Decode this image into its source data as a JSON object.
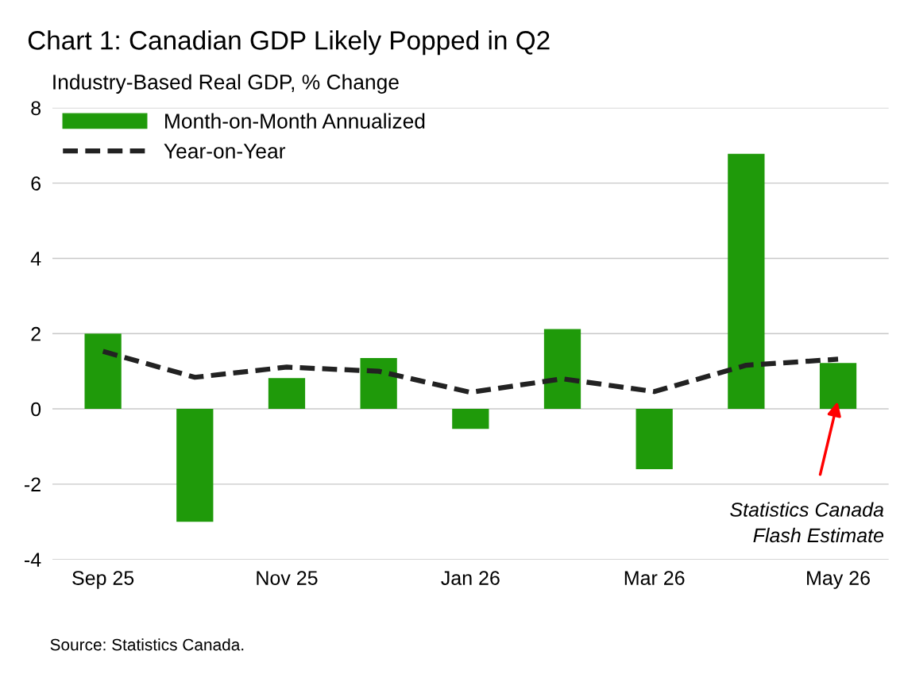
{
  "chart_data": {
    "type": "bar",
    "title": "Chart 1: Canadian GDP Likely Popped in Q2",
    "ylabel": "Industry-Based Real GDP, % Change",
    "categories": [
      "Sep 25",
      null,
      "Nov 25",
      null,
      "Jan 26",
      null,
      "Mar 26",
      null,
      "May 26"
    ],
    "series": [
      {
        "name": "Month-on-Month Annualized",
        "color": "#1f9a0a",
        "values": [
          2.0,
          -3.0,
          0.82,
          1.35,
          -0.53,
          2.12,
          -1.6,
          6.78,
          1.22
        ]
      },
      {
        "name": "Year-on-Year",
        "type": "line",
        "color": "#222222",
        "line_style": "dashed",
        "values": [
          1.53,
          0.84,
          1.11,
          1.0,
          0.44,
          0.8,
          0.46,
          1.16,
          1.32
        ]
      }
    ],
    "ylim": [
      -4,
      8
    ],
    "yticks": [
      {
        "value": -4,
        "label": "-4"
      },
      {
        "value": -2,
        "label": "-2"
      },
      0,
      2,
      4,
      6,
      8
    ],
    "grid": "y",
    "legend": "top left",
    "annotations": [
      "Statistics Canada\nFlash Estimate",
      "Source: Statistics Canada."
    ]
  }
}
